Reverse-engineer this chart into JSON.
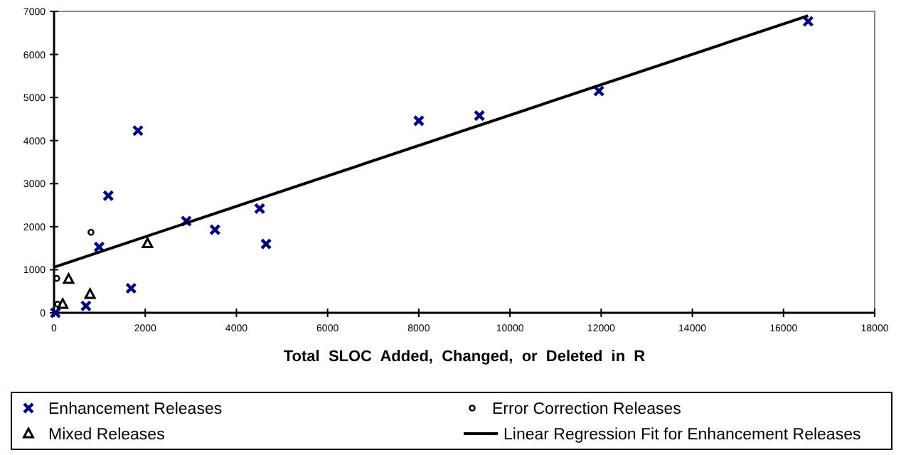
{
  "chart_data": {
    "type": "scatter",
    "xlabel": "Total  SLOC  Added,  Changed,  or  Deleted  in  R",
    "xlim": [
      0,
      18000
    ],
    "xticks": [
      0,
      2000,
      4000,
      6000,
      8000,
      10000,
      12000,
      14000,
      16000,
      18000
    ],
    "ylim": [
      0,
      7000
    ],
    "yticks": [
      0,
      1000,
      2000,
      3000,
      4000,
      5000,
      6000,
      7000
    ],
    "grid": false,
    "legend": "bottom",
    "series": [
      {
        "name": "Enhancement Releases",
        "color": "#000080",
        "marker": "cross",
        "x": [
          30,
          700,
          990,
          1190,
          1690,
          1840,
          2900,
          3530,
          4510,
          4650,
          8000,
          9330,
          11950,
          16540
        ],
        "values": [
          0,
          160,
          1530,
          2720,
          570,
          4230,
          2130,
          1930,
          2420,
          1600,
          4460,
          4580,
          5150,
          6770
        ]
      },
      {
        "name": "Error Correction Releases",
        "color": "#000000",
        "marker": "circle",
        "x": [
          60,
          80,
          810
        ],
        "values": [
          800,
          200,
          1870
        ]
      },
      {
        "name": "Mixed Releases",
        "color": "#000000",
        "marker": "triangle",
        "x": [
          190,
          320,
          790,
          2050
        ],
        "values": [
          200,
          780,
          430,
          1610
        ]
      },
      {
        "name": "Linear Regression Fit for Enhancement Releases",
        "type": "line",
        "color": "#000000",
        "marker": "none",
        "x": [
          0,
          16540
        ],
        "values": [
          1060,
          6900
        ]
      }
    ]
  }
}
